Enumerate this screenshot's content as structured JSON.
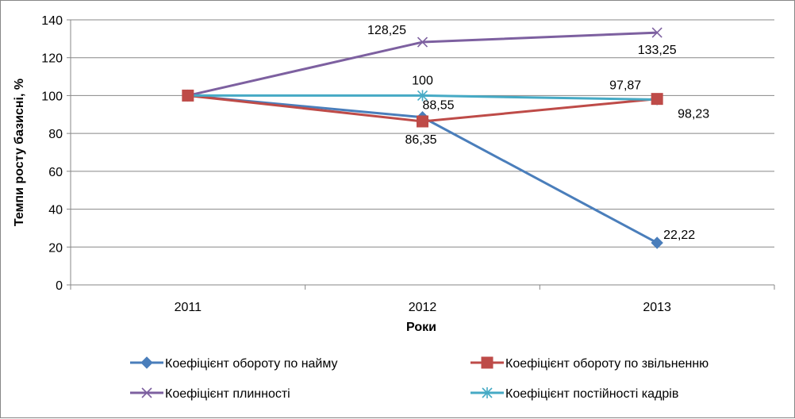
{
  "chart_data": {
    "type": "line",
    "categories": [
      "2011",
      "2012",
      "2013"
    ],
    "series": [
      {
        "name": "Коефіцієнт обороту по найму",
        "values": [
          100,
          88.55,
          22.22
        ],
        "labels": [
          "",
          "88,55",
          "22,22"
        ],
        "color": "#4a7ebb",
        "marker": "diamond"
      },
      {
        "name": "Коефіцієнт обороту по звільненню",
        "values": [
          100,
          86.35,
          98.23
        ],
        "labels": [
          "",
          "86,35",
          "98,23"
        ],
        "color": "#be4b48",
        "marker": "square"
      },
      {
        "name": "Коефіцієнт плинності",
        "values": [
          100,
          128.25,
          133.25
        ],
        "labels": [
          "",
          "128,25",
          "133,25"
        ],
        "color": "#7d60a0",
        "marker": "x"
      },
      {
        "name": "Коефіцієнт постійності кадрів",
        "values": [
          100,
          100,
          97.87
        ],
        "labels": [
          "",
          "100",
          "97,87"
        ],
        "color": "#46aac5",
        "marker": "star"
      }
    ],
    "xlabel": "Роки",
    "ylabel": "Темпи росту базисні, %",
    "ylim": [
      0,
      140
    ],
    "yticks": [
      "0",
      "20",
      "40",
      "60",
      "80",
      "100",
      "120",
      "140"
    ],
    "grid": true,
    "legend": "bottom"
  }
}
